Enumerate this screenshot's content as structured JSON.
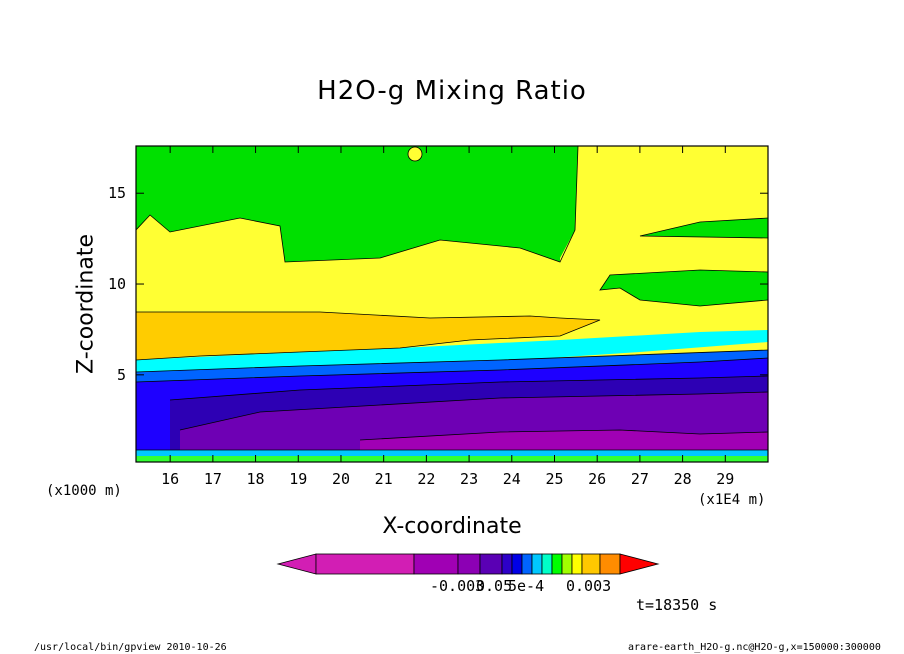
{
  "chart_data": {
    "type": "heatmap",
    "title": "H2O-g Mixing Ratio",
    "xlabel": "X-coordinate",
    "ylabel": "Z-coordinate",
    "x_unit": "(x1E4 m)",
    "y_unit": "(x1000 m)",
    "xlim": [
      15.2,
      30.0
    ],
    "ylim": [
      0.2,
      17.6
    ],
    "x_ticks": [
      "16",
      "17",
      "18",
      "19",
      "20",
      "21",
      "22",
      "23",
      "24",
      "25",
      "26",
      "27",
      "28",
      "29"
    ],
    "y_ticks": [
      "5",
      "10",
      "15"
    ],
    "colorbar": {
      "colors": [
        "#d21eb4",
        "#a000b4",
        "#8c00b4",
        "#5a00b4",
        "#2d00c8",
        "#0000e6",
        "#0064ff",
        "#00c8ff",
        "#00ffc8",
        "#00ff00",
        "#a0ff00",
        "#ffff00",
        "#ffc800",
        "#ff8c00",
        "#ff0000"
      ],
      "label_left": "-0.003",
      "label_mid": "0.05",
      "label_exp": "5e-4",
      "label_right": "0.003",
      "overlap_prefix": "-0.003"
    },
    "time_label": "t=18350 s"
  },
  "footer": {
    "left": "/usr/local/bin/gpview  2010-10-26",
    "right": "arare-earth_H2O-g.nc@H2O-g,x=150000:300000"
  }
}
